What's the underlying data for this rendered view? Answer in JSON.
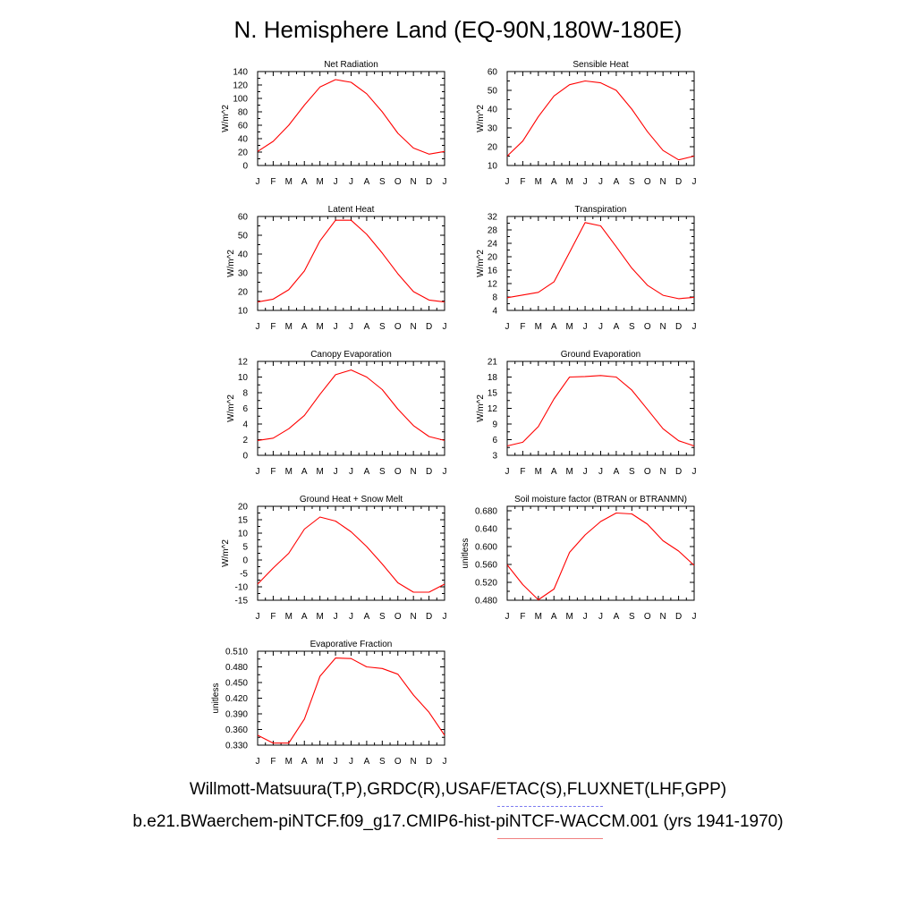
{
  "title": "N. Hemisphere Land (EQ-90N,180W-180E)",
  "legend": {
    "observations": "Willmott-Matsuura(T,P),GRDC(R),USAF/ETAC(S),FLUXNET(LHF,GPP)",
    "model": "b.e21.BWaerchem-piNTCF.f09_g17.CMIP6-hist-piNTCF-WACCM.001 (yrs 1941-1970)",
    "obs_color": "#7d7df0",
    "model_color": "#f08080"
  },
  "line_color": "#ff0000",
  "chart_data": [
    {
      "type": "line",
      "title": "Net Radiation",
      "ylabel": "W/m^2",
      "categories": [
        "J",
        "F",
        "M",
        "A",
        "M",
        "J",
        "J",
        "A",
        "S",
        "O",
        "N",
        "D",
        "J"
      ],
      "ylim": [
        0,
        140
      ],
      "yticks": [
        0,
        20,
        40,
        60,
        80,
        100,
        120,
        140
      ],
      "ytick_labels": [
        "0",
        "20",
        "40",
        "60",
        "80",
        "100",
        "120",
        "140"
      ],
      "values": [
        21,
        36,
        60,
        90,
        117,
        128,
        124,
        107,
        80,
        48,
        26,
        17,
        21
      ]
    },
    {
      "type": "line",
      "title": "Sensible Heat",
      "ylabel": "W/m^2",
      "categories": [
        "J",
        "F",
        "M",
        "A",
        "M",
        "J",
        "J",
        "A",
        "S",
        "O",
        "N",
        "D",
        "J"
      ],
      "ylim": [
        10,
        60
      ],
      "yticks": [
        10,
        20,
        30,
        40,
        50,
        60
      ],
      "ytick_labels": [
        "10",
        "20",
        "30",
        "40",
        "50",
        "60"
      ],
      "values": [
        15,
        23,
        36,
        47,
        53,
        55,
        54,
        50,
        40,
        28,
        18,
        13,
        15
      ]
    },
    {
      "type": "line",
      "title": "Latent Heat",
      "ylabel": "W/m^2",
      "categories": [
        "J",
        "F",
        "M",
        "A",
        "M",
        "J",
        "J",
        "A",
        "S",
        "O",
        "N",
        "D",
        "J"
      ],
      "ylim": [
        10,
        60
      ],
      "yticks": [
        10,
        20,
        30,
        40,
        50,
        60
      ],
      "ytick_labels": [
        "10",
        "20",
        "30",
        "40",
        "50",
        "60"
      ],
      "values": [
        14.5,
        16,
        21,
        31,
        47,
        58,
        58,
        50.5,
        40.5,
        29.5,
        20,
        15.5,
        14.5
      ]
    },
    {
      "type": "line",
      "title": "Transpiration",
      "ylabel": "W/m^2",
      "categories": [
        "J",
        "F",
        "M",
        "A",
        "M",
        "J",
        "J",
        "A",
        "S",
        "O",
        "N",
        "D",
        "J"
      ],
      "ylim": [
        4,
        32
      ],
      "yticks": [
        4,
        8,
        12,
        16,
        20,
        24,
        28,
        32
      ],
      "ytick_labels": [
        "4",
        "8",
        "12",
        "16",
        "20",
        "24",
        "28",
        "32"
      ],
      "values": [
        7.8,
        8.6,
        9.4,
        12.5,
        21.3,
        30.2,
        29.2,
        23,
        16.6,
        11.5,
        8.5,
        7.5,
        7.9
      ]
    },
    {
      "type": "line",
      "title": "Canopy Evaporation",
      "ylabel": "W/m^2",
      "categories": [
        "J",
        "F",
        "M",
        "A",
        "M",
        "J",
        "J",
        "A",
        "S",
        "O",
        "N",
        "D",
        "J"
      ],
      "ylim": [
        0,
        12
      ],
      "yticks": [
        0,
        2,
        4,
        6,
        8,
        10,
        12
      ],
      "ytick_labels": [
        "0",
        "2",
        "4",
        "6",
        "8",
        "10",
        "12"
      ],
      "values": [
        1.9,
        2.2,
        3.4,
        5.1,
        7.8,
        10.3,
        10.9,
        10,
        8.4,
        5.9,
        3.8,
        2.4,
        1.9
      ]
    },
    {
      "type": "line",
      "title": "Ground Evaporation",
      "ylabel": "W/m^2",
      "categories": [
        "J",
        "F",
        "M",
        "A",
        "M",
        "J",
        "J",
        "A",
        "S",
        "O",
        "N",
        "D",
        "J"
      ],
      "ylim": [
        3,
        21
      ],
      "yticks": [
        3,
        6,
        9,
        12,
        15,
        18,
        21
      ],
      "ytick_labels": [
        "3",
        "6",
        "9",
        "12",
        "15",
        "18",
        "21"
      ],
      "values": [
        4.8,
        5.5,
        8.5,
        13.8,
        18,
        18.1,
        18.3,
        18,
        15.5,
        11.8,
        8.1,
        5.8,
        4.8
      ]
    },
    {
      "type": "line",
      "title": "Ground Heat + Snow Melt",
      "ylabel": "W/m^2",
      "categories": [
        "J",
        "F",
        "M",
        "A",
        "M",
        "J",
        "J",
        "A",
        "S",
        "O",
        "N",
        "D",
        "J"
      ],
      "ylim": [
        -15,
        20
      ],
      "yticks": [
        -15,
        -10,
        -5,
        0,
        5,
        10,
        15,
        20
      ],
      "ytick_labels": [
        "-15",
        "-10",
        "-5",
        "0",
        "5",
        "10",
        "15",
        "20"
      ],
      "values": [
        -9,
        -3,
        2.5,
        11.5,
        16,
        14.5,
        10.5,
        5,
        -1.5,
        -8.5,
        -12,
        -12,
        -9
      ]
    },
    {
      "type": "line",
      "title": "Soil moisture factor (BTRAN or BTRANMN)",
      "ylabel": "unitless",
      "categories": [
        "J",
        "F",
        "M",
        "A",
        "M",
        "J",
        "J",
        "A",
        "S",
        "O",
        "N",
        "D",
        "J"
      ],
      "ylim": [
        0.48,
        0.69
      ],
      "yticks": [
        0.48,
        0.52,
        0.56,
        0.6,
        0.64,
        0.68
      ],
      "ytick_labels": [
        "0.480",
        "0.520",
        "0.560",
        "0.600",
        "0.640",
        "0.680"
      ],
      "values": [
        0.559,
        0.515,
        0.481,
        0.505,
        0.587,
        0.626,
        0.656,
        0.675,
        0.673,
        0.65,
        0.613,
        0.59,
        0.558
      ]
    },
    {
      "type": "line",
      "title": "Evaporative Fraction",
      "ylabel": "unitless",
      "categories": [
        "J",
        "F",
        "M",
        "A",
        "M",
        "J",
        "J",
        "A",
        "S",
        "O",
        "N",
        "D",
        "J"
      ],
      "ylim": [
        0.33,
        0.51
      ],
      "yticks": [
        0.33,
        0.36,
        0.39,
        0.42,
        0.45,
        0.48,
        0.51
      ],
      "ytick_labels": [
        "0.330",
        "0.360",
        "0.390",
        "0.420",
        "0.450",
        "0.480",
        "0.510"
      ],
      "values": [
        0.349,
        0.334,
        0.334,
        0.38,
        0.462,
        0.497,
        0.496,
        0.48,
        0.477,
        0.466,
        0.426,
        0.393,
        0.349
      ]
    }
  ]
}
